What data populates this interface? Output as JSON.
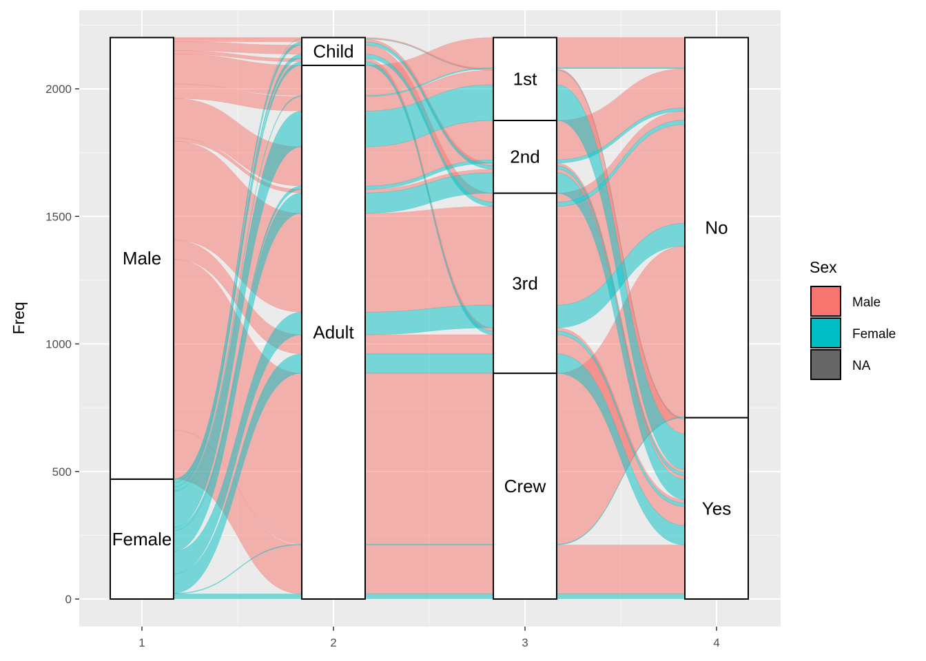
{
  "chart_data": {
    "type": "alluvial",
    "ylabel": "Freq",
    "xlabel": "",
    "ylim": [
      -100,
      2300
    ],
    "y_ticks": [
      0,
      500,
      1000,
      1500,
      2000
    ],
    "x_ticks": [
      "1",
      "2",
      "3",
      "4"
    ],
    "grid": true,
    "legend": {
      "title": "Sex",
      "position": "right",
      "items": [
        {
          "label": "Male",
          "color": "#F8766D"
        },
        {
          "label": "Female",
          "color": "#00BFC4"
        },
        {
          "label": "NA",
          "color": "#666666"
        }
      ]
    },
    "axes": [
      {
        "x": 1,
        "strata": [
          {
            "label": "Female",
            "value": 470
          },
          {
            "label": "Male",
            "value": 1731
          }
        ]
      },
      {
        "x": 2,
        "strata": [
          {
            "label": "Adult",
            "value": 2092
          },
          {
            "label": "Child",
            "value": 109
          }
        ]
      },
      {
        "x": 3,
        "strata": [
          {
            "label": "Crew",
            "value": 885
          },
          {
            "label": "3rd",
            "value": 706
          },
          {
            "label": "2nd",
            "value": 285
          },
          {
            "label": "1st",
            "value": 325
          }
        ]
      },
      {
        "x": 4,
        "strata": [
          {
            "label": "Yes",
            "value": 711
          },
          {
            "label": "No",
            "value": 1490
          }
        ]
      }
    ],
    "flows": [
      {
        "path": [
          "Male",
          "Adult",
          "Crew",
          "No"
        ],
        "value": 670
      },
      {
        "path": [
          "Male",
          "Adult",
          "Crew",
          "Yes"
        ],
        "value": 192
      },
      {
        "path": [
          "Male",
          "Adult",
          "3rd",
          "No"
        ],
        "value": 387
      },
      {
        "path": [
          "Male",
          "Adult",
          "3rd",
          "Yes"
        ],
        "value": 75
      },
      {
        "path": [
          "Male",
          "Adult",
          "2nd",
          "No"
        ],
        "value": 154
      },
      {
        "path": [
          "Male",
          "Adult",
          "2nd",
          "Yes"
        ],
        "value": 14
      },
      {
        "path": [
          "Male",
          "Adult",
          "1st",
          "No"
        ],
        "value": 118
      },
      {
        "path": [
          "Male",
          "Adult",
          "1st",
          "Yes"
        ],
        "value": 57
      },
      {
        "path": [
          "Male",
          "Child",
          "3rd",
          "No"
        ],
        "value": 35
      },
      {
        "path": [
          "Male",
          "Child",
          "3rd",
          "Yes"
        ],
        "value": 13
      },
      {
        "path": [
          "Male",
          "Child",
          "2nd",
          "Yes"
        ],
        "value": 11
      },
      {
        "path": [
          "Male",
          "Child",
          "1st",
          "Yes"
        ],
        "value": 5
      },
      {
        "path": [
          "Female",
          "Adult",
          "Crew",
          "No"
        ],
        "value": 3
      },
      {
        "path": [
          "Female",
          "Adult",
          "Crew",
          "Yes"
        ],
        "value": 20
      },
      {
        "path": [
          "Female",
          "Adult",
          "3rd",
          "No"
        ],
        "value": 89
      },
      {
        "path": [
          "Female",
          "Adult",
          "3rd",
          "Yes"
        ],
        "value": 76
      },
      {
        "path": [
          "Female",
          "Adult",
          "2nd",
          "No"
        ],
        "value": 13
      },
      {
        "path": [
          "Female",
          "Adult",
          "2nd",
          "Yes"
        ],
        "value": 80
      },
      {
        "path": [
          "Female",
          "Adult",
          "1st",
          "No"
        ],
        "value": 4
      },
      {
        "path": [
          "Female",
          "Adult",
          "1st",
          "Yes"
        ],
        "value": 140
      },
      {
        "path": [
          "Female",
          "Child",
          "3rd",
          "No"
        ],
        "value": 17
      },
      {
        "path": [
          "Female",
          "Child",
          "3rd",
          "Yes"
        ],
        "value": 14
      },
      {
        "path": [
          "Female",
          "Child",
          "2nd",
          "Yes"
        ],
        "value": 13
      },
      {
        "path": [
          "Female",
          "Child",
          "1st",
          "Yes"
        ],
        "value": 1
      }
    ]
  }
}
